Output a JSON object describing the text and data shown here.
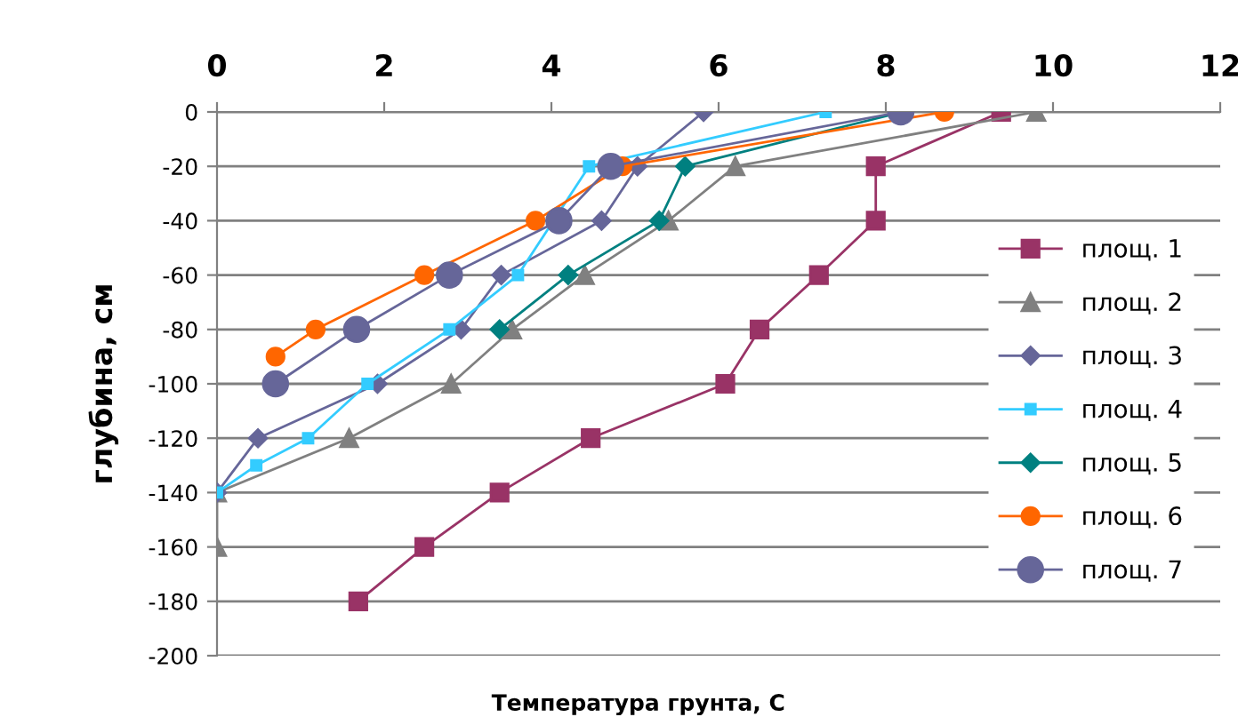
{
  "chart_data": {
    "type": "line",
    "xlabel": "Температура грунта, С",
    "ylabel": "глубина, см",
    "xlim": [
      0,
      12
    ],
    "xticks": [
      0,
      2,
      4,
      6,
      8,
      10,
      12
    ],
    "ylim": [
      -200,
      0
    ],
    "yticks": [
      0,
      -20,
      -40,
      -60,
      -80,
      -100,
      -120,
      -140,
      -160,
      -180,
      -200
    ],
    "grid": "y",
    "legend": "right",
    "tick_labels": "xy",
    "series": [
      {
        "name": "площ. 1",
        "color": "#993366",
        "marker": "square",
        "x": [
          9.38,
          7.88,
          7.88,
          7.2,
          6.49,
          6.08,
          4.47,
          3.38,
          2.48,
          1.69
        ],
        "values": [
          0,
          -20,
          -40,
          -60,
          -80,
          -100,
          -120,
          -140,
          -160,
          -180
        ]
      },
      {
        "name": "площ. 2",
        "color": "#808080",
        "marker": "triangle",
        "x": [
          9.8,
          6.2,
          5.4,
          4.4,
          3.53,
          2.8,
          1.58,
          0,
          0
        ],
        "values": [
          0,
          -20,
          -40,
          -60,
          -80,
          -100,
          -120,
          -140,
          -160
        ]
      },
      {
        "name": "площ. 3",
        "color": "#666699",
        "marker": "diamond",
        "x": [
          5.82,
          5.03,
          4.6,
          3.4,
          2.92,
          1.92,
          0.49,
          0
        ],
        "values": [
          0,
          -20,
          -40,
          -60,
          -80,
          -100,
          -120,
          -140
        ]
      },
      {
        "name": "площ. 4",
        "color": "#33ccff",
        "marker": "square",
        "x": [
          7.28,
          4.45,
          3.6,
          2.78,
          1.8,
          1.09,
          0.47,
          0
        ],
        "values": [
          0,
          -20,
          -60,
          -80,
          -100,
          -120,
          -130,
          -140
        ]
      },
      {
        "name": "площ. 5",
        "color": "#008080",
        "marker": "diamond",
        "x": [
          8.2,
          5.6,
          5.29,
          4.2,
          3.38
        ],
        "values": [
          0,
          -20,
          -40,
          -60,
          -80
        ]
      },
      {
        "name": "площ. 6",
        "color": "#ff6600",
        "marker": "circle",
        "x": [
          8.7,
          4.85,
          3.81,
          2.48,
          1.18,
          0.7
        ],
        "values": [
          0,
          -20,
          -40,
          -60,
          -80,
          -90
        ]
      },
      {
        "name": "площ. 7",
        "color": "#666699",
        "marker": "circle",
        "x": [
          8.18,
          4.71,
          4.09,
          2.78,
          1.67,
          0.7
        ],
        "values": [
          0,
          -20,
          -40,
          -60,
          -80,
          -100
        ]
      }
    ]
  }
}
